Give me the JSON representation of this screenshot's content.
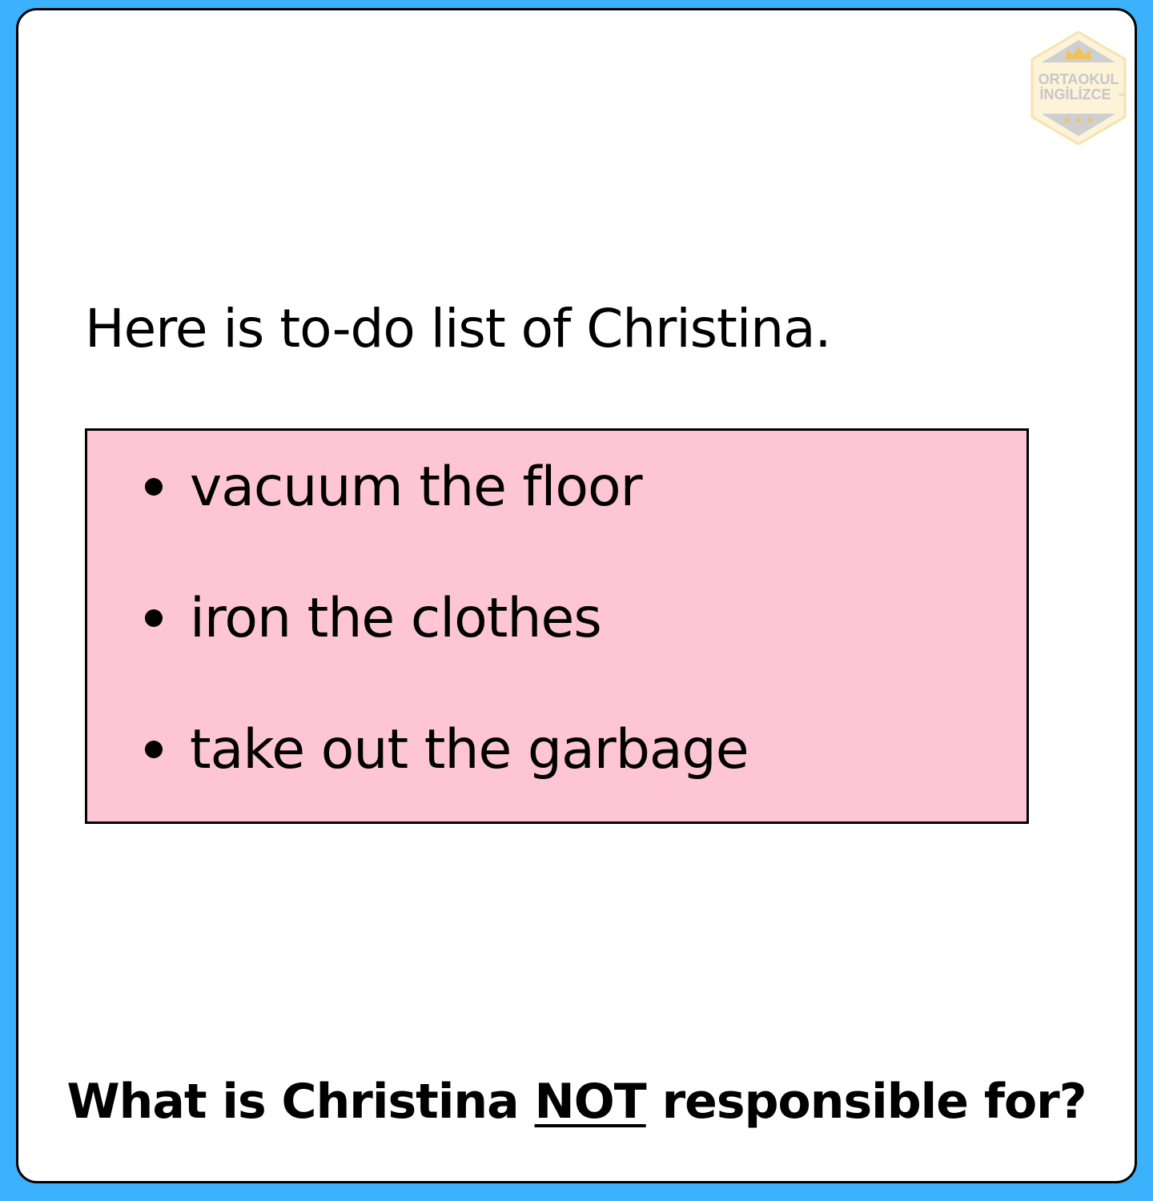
{
  "colors": {
    "background": "#3bb2fb",
    "card": "#ffffff",
    "todo_box": "#fec5d4",
    "text": "#000000"
  },
  "logo": {
    "icon": "crown-hexagon-logo",
    "line1": "ORTAOKUL",
    "line2": "İNGİLİZCE",
    "small": "net"
  },
  "intro": "Here is to-do list of Christina.",
  "todo": {
    "items": [
      "vacuum the floor",
      "iron the clothes",
      "take out the garbage"
    ]
  },
  "question": {
    "before": "What is Christina ",
    "emphasis": "NOT",
    "after": " responsible for?"
  }
}
